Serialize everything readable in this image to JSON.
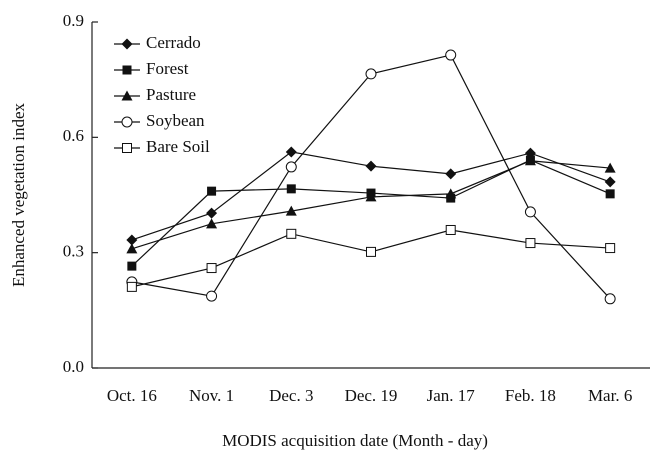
{
  "chart_data": {
    "type": "line",
    "x_label": "MODIS acquisition date (Month - day)",
    "y_label": "Enhanced vegetation index",
    "categories": [
      "Oct. 16",
      "Nov. 1",
      "Dec. 3",
      "Dec. 19",
      "Jan. 17",
      "Feb. 18",
      "Mar. 6"
    ],
    "ylim": [
      0,
      0.9
    ],
    "yticks": [
      {
        "value": 0,
        "label": "0.0"
      },
      0.3,
      0.6,
      0.9
    ],
    "legend": "upper-left",
    "series": [
      {
        "name": "Cerrado",
        "color": "#111111",
        "marker": "diamond",
        "values": [
          0.333,
          0.403,
          0.562,
          0.525,
          0.505,
          0.559,
          0.484
        ]
      },
      {
        "name": "Forest",
        "color": "#111111",
        "marker": "square",
        "values": [
          0.265,
          0.46,
          0.466,
          0.455,
          0.442,
          0.541,
          0.453
        ]
      },
      {
        "name": "Pasture",
        "color": "#111111",
        "marker": "triangle",
        "values": [
          0.31,
          0.375,
          0.408,
          0.445,
          0.453,
          0.539,
          0.52
        ]
      },
      {
        "name": "Soybean",
        "color": "#111111",
        "marker": "circle-open",
        "values": [
          0.224,
          0.187,
          0.523,
          0.765,
          0.814,
          0.406,
          0.18
        ]
      },
      {
        "name": "Bare Soil",
        "color": "#111111",
        "marker": "square-open",
        "values": [
          0.211,
          0.26,
          0.349,
          0.302,
          0.359,
          0.325,
          0.312
        ]
      }
    ]
  }
}
